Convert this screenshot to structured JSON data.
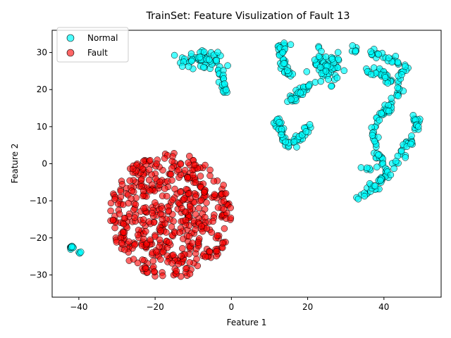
{
  "chart_data": {
    "type": "scatter",
    "title": "TrainSet: Feature Visulization of Fault 13",
    "xlabel": "Feature 1",
    "ylabel": "Feature 2",
    "xlim": [
      -47,
      55
    ],
    "ylim": [
      -36,
      36
    ],
    "xticks": [
      -40,
      -20,
      0,
      20,
      40
    ],
    "yticks": [
      -30,
      -20,
      -10,
      0,
      10,
      20,
      30
    ],
    "grid": false,
    "legend_position": "top-left",
    "series": [
      {
        "name": "Normal",
        "color": "#00FFFF",
        "edge_color": "#000000",
        "alpha": 0.7,
        "clusters": [
          {
            "shape": "blob",
            "center": [
              -8,
              28
            ],
            "spread": [
              5,
              2
            ],
            "n": 60
          },
          {
            "shape": "polyline",
            "path": [
              [
                -3,
                25
              ],
              [
                -2,
                22
              ],
              [
                -1.5,
                19
              ]
            ],
            "n": 22
          },
          {
            "shape": "blob",
            "center": [
              -42,
              -22.5
            ],
            "spread": [
              0.8,
              0.5
            ],
            "n": 10
          },
          {
            "shape": "blob",
            "center": [
              -39.5,
              -24
            ],
            "spread": [
              0.3,
              0.3
            ],
            "n": 3
          },
          {
            "shape": "polyline",
            "path": [
              [
                14,
                33
              ],
              [
                13,
                30
              ],
              [
                13.5,
                27
              ],
              [
                14.5,
                25
              ],
              [
                16,
                24
              ]
            ],
            "n": 40
          },
          {
            "shape": "polyline",
            "path": [
              [
                15,
                17
              ],
              [
                17,
                18
              ],
              [
                19,
                20
              ],
              [
                20,
                21
              ]
            ],
            "n": 30
          },
          {
            "shape": "blob",
            "center": [
              25,
              26
            ],
            "spread": [
              3,
              4
            ],
            "n": 70
          },
          {
            "shape": "polyline",
            "path": [
              [
                12,
                12.5
              ],
              [
                13,
                9
              ],
              [
                14,
                6
              ],
              [
                16,
                5
              ],
              [
                17,
                6.5
              ],
              [
                19,
                8.5
              ],
              [
                21,
                10.5
              ]
            ],
            "n": 55
          },
          {
            "shape": "polyline",
            "path": [
              [
                32,
                31
              ],
              [
                36,
                30
              ],
              [
                39,
                29
              ],
              [
                42,
                28
              ],
              [
                45,
                26
              ],
              [
                44,
                22
              ],
              [
                44,
                18
              ],
              [
                42,
                16
              ],
              [
                39,
                13
              ],
              [
                37.5,
                9
              ],
              [
                38,
                5
              ],
              [
                39,
                2
              ],
              [
                39,
                -1
              ],
              [
                36,
                -1.5
              ],
              [
                33,
                -1
              ]
            ],
            "n": 110
          },
          {
            "shape": "polyline",
            "path": [
              [
                35,
                25
              ],
              [
                38,
                25
              ],
              [
                40,
                24
              ],
              [
                42,
                22
              ]
            ],
            "n": 30
          },
          {
            "shape": "polyline",
            "path": [
              [
                48,
                13
              ],
              [
                49,
                10
              ],
              [
                48,
                7
              ],
              [
                46,
                4.5
              ],
              [
                44,
                2
              ],
              [
                42,
                -1
              ],
              [
                40,
                -4
              ],
              [
                38,
                -6
              ],
              [
                35,
                -8
              ],
              [
                33,
                -9
              ]
            ],
            "n": 75
          }
        ]
      },
      {
        "name": "Fault",
        "color": "#FF0000",
        "edge_color": "#000000",
        "alpha": 0.6,
        "clusters": [
          {
            "shape": "disc",
            "center": [
              -16,
              -14
            ],
            "radius": [
              16,
              17
            ],
            "n": 520
          }
        ]
      }
    ]
  }
}
